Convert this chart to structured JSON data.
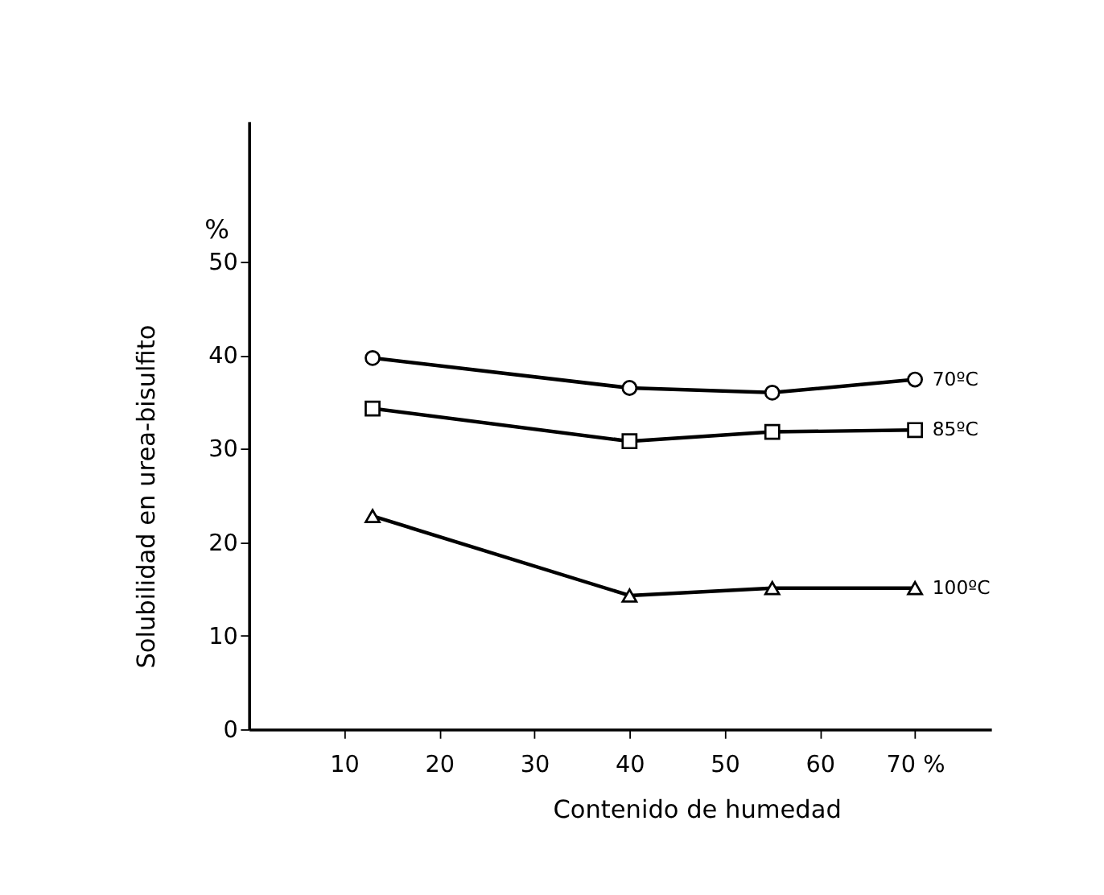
{
  "chart_data": {
    "type": "line",
    "xlabel": "Contenido de humedad",
    "ylabel": "Solubilidad en urea-bisulfito",
    "annotations": [
      "%"
    ],
    "xlim": [
      0,
      78
    ],
    "ylim": [
      0,
      65
    ],
    "xticks": [
      10,
      20,
      30,
      40,
      50,
      60,
      {
        "value": 70,
        "label": "70 %"
      }
    ],
    "yticks": [
      0,
      10,
      20,
      30,
      40,
      50
    ],
    "x": [
      13,
      40,
      55,
      70
    ],
    "grid": false,
    "line_style": "solid",
    "series": [
      {
        "name": "70ºC",
        "color": "#000000",
        "marker": "circle",
        "values": [
          39.7,
          36.5,
          36,
          37.4
        ]
      },
      {
        "name": "85ºC",
        "color": "#000000",
        "marker": "square",
        "values": [
          34.3,
          30.8,
          31.8,
          32
        ]
      },
      {
        "name": "100ºC",
        "color": "#000000",
        "marker": "triangle",
        "values": [
          22.8,
          14.3,
          15.1,
          15.1
        ]
      }
    ]
  }
}
